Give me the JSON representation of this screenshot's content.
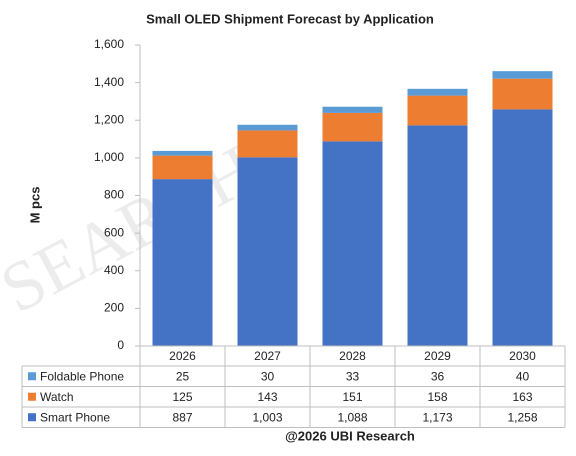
{
  "chart_data": {
    "type": "bar",
    "stacked": true,
    "title": "Small OLED Shipment Forecast by Application",
    "ylabel": "M pcs",
    "source": "@2026 UBI Research",
    "watermark": "SEARCH",
    "categories": [
      "2026",
      "2027",
      "2028",
      "2029",
      "2030"
    ],
    "series": [
      {
        "name": "Smart Phone",
        "color": "#4472c4",
        "values": [
          887,
          1003,
          1088,
          1173,
          1258
        ],
        "value_labels": [
          "887",
          "1,003",
          "1,088",
          "1,173",
          "1,258"
        ]
      },
      {
        "name": "Watch",
        "color": "#ed7d31",
        "values": [
          125,
          143,
          151,
          158,
          163
        ]
      },
      {
        "name": "Foldable Phone",
        "color": "#5b9bd5",
        "values": [
          25,
          30,
          33,
          36,
          40
        ]
      }
    ],
    "ylim": [
      0,
      1600
    ],
    "yticks": [
      0,
      200,
      400,
      600,
      800,
      {
        "value": 1000,
        "label": "1,000"
      },
      {
        "value": 1200,
        "label": "1,200"
      },
      {
        "value": 1400,
        "label": "1,400"
      },
      {
        "value": 1600,
        "label": "1,600"
      }
    ],
    "grid": false,
    "data_table": true
  }
}
